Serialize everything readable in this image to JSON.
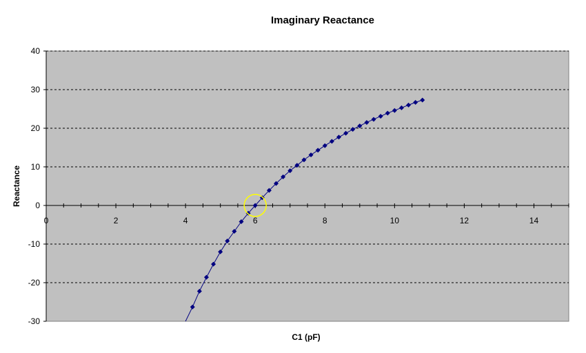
{
  "chart_data": {
    "type": "scatter",
    "title": "Imaginary Reactance",
    "xlabel": "C1 (pF)",
    "ylabel": "Reactance",
    "xlim": [
      0,
      15
    ],
    "ylim": [
      -30,
      40
    ],
    "xticks": [
      0,
      2,
      4,
      6,
      8,
      10,
      12,
      14
    ],
    "yticks": [
      -30,
      -20,
      -10,
      0,
      10,
      20,
      30,
      40
    ],
    "grid": "horizontal dashed",
    "legend": "none",
    "colors": {
      "plot_bg": "#c0c0c0",
      "series": "#000080",
      "highlight": "#ffff00"
    },
    "highlight": {
      "x": 6.0,
      "y": 0
    },
    "series": [
      {
        "x": [
          4.0,
          4.2,
          4.4,
          4.6,
          4.8,
          5.0,
          5.2,
          5.4,
          5.6,
          5.8,
          6.0,
          6.2,
          6.4,
          6.6,
          6.8,
          7.0,
          7.2,
          7.4,
          7.6,
          7.8,
          8.0,
          8.2,
          8.4,
          8.6,
          8.8,
          9.0,
          9.2,
          9.4,
          9.6,
          9.8,
          10.0,
          10.2,
          10.4,
          10.6,
          10.8
        ],
        "y": [
          -30.0,
          -26.3,
          -22.2,
          -18.6,
          -15.2,
          -12.0,
          -9.2,
          -6.7,
          -4.2,
          -2.0,
          0.0,
          2.0,
          3.9,
          5.7,
          7.4,
          9.0,
          10.4,
          11.8,
          13.1,
          14.3,
          15.5,
          16.6,
          17.7,
          18.7,
          19.7,
          20.6,
          21.5,
          22.3,
          23.1,
          23.9,
          24.6,
          25.3,
          26.0,
          26.7,
          27.3
        ]
      }
    ]
  }
}
